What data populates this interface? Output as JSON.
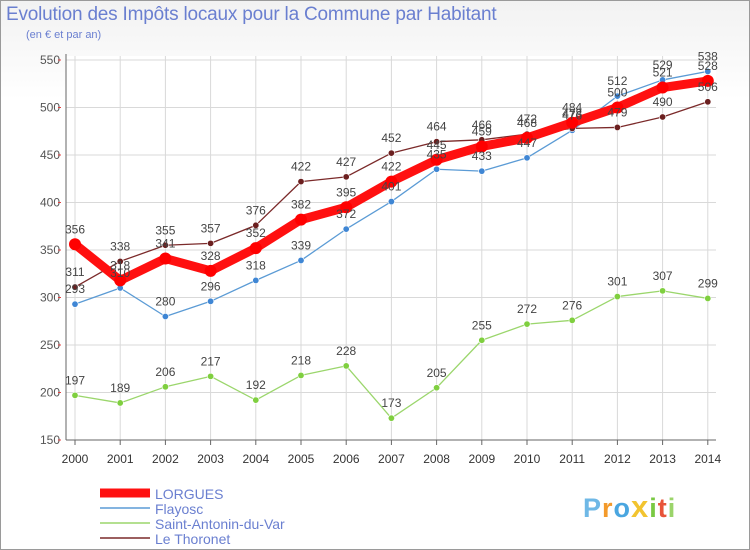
{
  "chart_data": {
    "type": "line",
    "title": "Evolution des Impôts locaux pour la Commune par Habitant",
    "subtitle": "(en € et par an)",
    "xlabel": "",
    "ylabel": "",
    "x": [
      "2000",
      "2001",
      "2002",
      "2003",
      "2004",
      "2005",
      "2006",
      "2007",
      "2008",
      "2009",
      "2010",
      "2011",
      "2012",
      "2013",
      "2014"
    ],
    "ylim": [
      150,
      550
    ],
    "yticks": [
      "150",
      "200",
      "250",
      "300",
      "350",
      "400",
      "450",
      "500",
      "550"
    ],
    "grid": true,
    "legend_position": "bottom-left",
    "series": [
      {
        "name": "LORGUES",
        "color": "#ff0000",
        "values": [
          356,
          318,
          341,
          328,
          352,
          382,
          395,
          422,
          445,
          459,
          468,
          484,
          500,
          521,
          528
        ],
        "labels": [
          "356",
          "318",
          "341",
          "328",
          "352",
          "382",
          "395",
          "422",
          "445",
          "459",
          "468",
          "484",
          "500",
          "521",
          "528"
        ]
      },
      {
        "name": "Flayosc",
        "color": "#5b9bd5",
        "values": [
          293,
          310,
          280,
          296,
          318,
          339,
          372,
          401,
          435,
          433,
          447,
          476,
          512,
          529,
          538
        ],
        "labels": [
          "293",
          "310",
          "280",
          "296",
          "318",
          "339",
          "372",
          "401",
          "435",
          "433",
          "447",
          "476",
          "512",
          "529",
          "538"
        ]
      },
      {
        "name": "Saint-Antonin-du-Var",
        "color": "#8ed55a",
        "values": [
          197,
          189,
          206,
          217,
          192,
          218,
          228,
          173,
          205,
          255,
          272,
          276,
          301,
          307,
          299
        ],
        "labels": [
          "197",
          "189",
          "206",
          "217",
          "192",
          "218",
          "228",
          "173",
          "205",
          "255",
          "272",
          "276",
          "301",
          "307",
          "299"
        ]
      },
      {
        "name": "Le Thoronet",
        "color": "#7b2a2a",
        "values": [
          311,
          338,
          355,
          357,
          376,
          422,
          427,
          452,
          464,
          466,
          472,
          478,
          479,
          490,
          506
        ],
        "labels": [
          "311",
          "338",
          "355",
          "357",
          "376",
          "422",
          "427",
          "452",
          "464",
          "466",
          "472",
          "478",
          "479",
          "490",
          "506"
        ]
      }
    ]
  },
  "logo": {
    "letters": [
      "P",
      "r",
      "o",
      "x",
      "i",
      "t",
      "i"
    ],
    "colors": [
      "#6fb8e6",
      "#f39a2b",
      "#4aa6e0",
      "#f2c430",
      "#7ac943",
      "#e8543a",
      "#9bd46a"
    ]
  }
}
